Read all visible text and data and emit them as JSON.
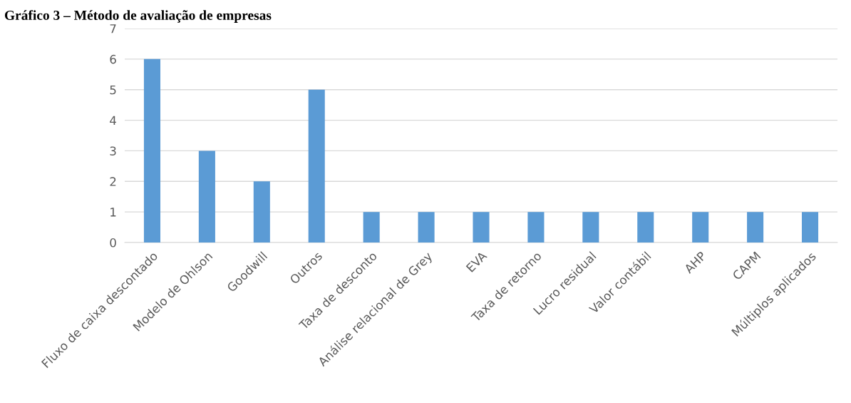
{
  "chart_data": {
    "type": "bar",
    "title": "Gráfico 3 – Método de avaliação de empresas",
    "categories": [
      "Fluxo de caixa descontado",
      "Modelo de Ohlson",
      "Goodwill",
      "Outros",
      "Taxa de desconto",
      "Análise relacional de Grey",
      "EVA",
      "Taxa de retorno",
      "Lucro residual",
      "Valor contábil",
      "AHP",
      "CAPM",
      "Múltiplos aplicados"
    ],
    "values": [
      6,
      3,
      2,
      5,
      1,
      1,
      1,
      1,
      1,
      1,
      1,
      1,
      1
    ],
    "color": "#5b9bd5",
    "ylim": [
      0,
      7
    ],
    "yticks": [
      0,
      1,
      2,
      3,
      4,
      5,
      6,
      7
    ],
    "grid": "y"
  }
}
